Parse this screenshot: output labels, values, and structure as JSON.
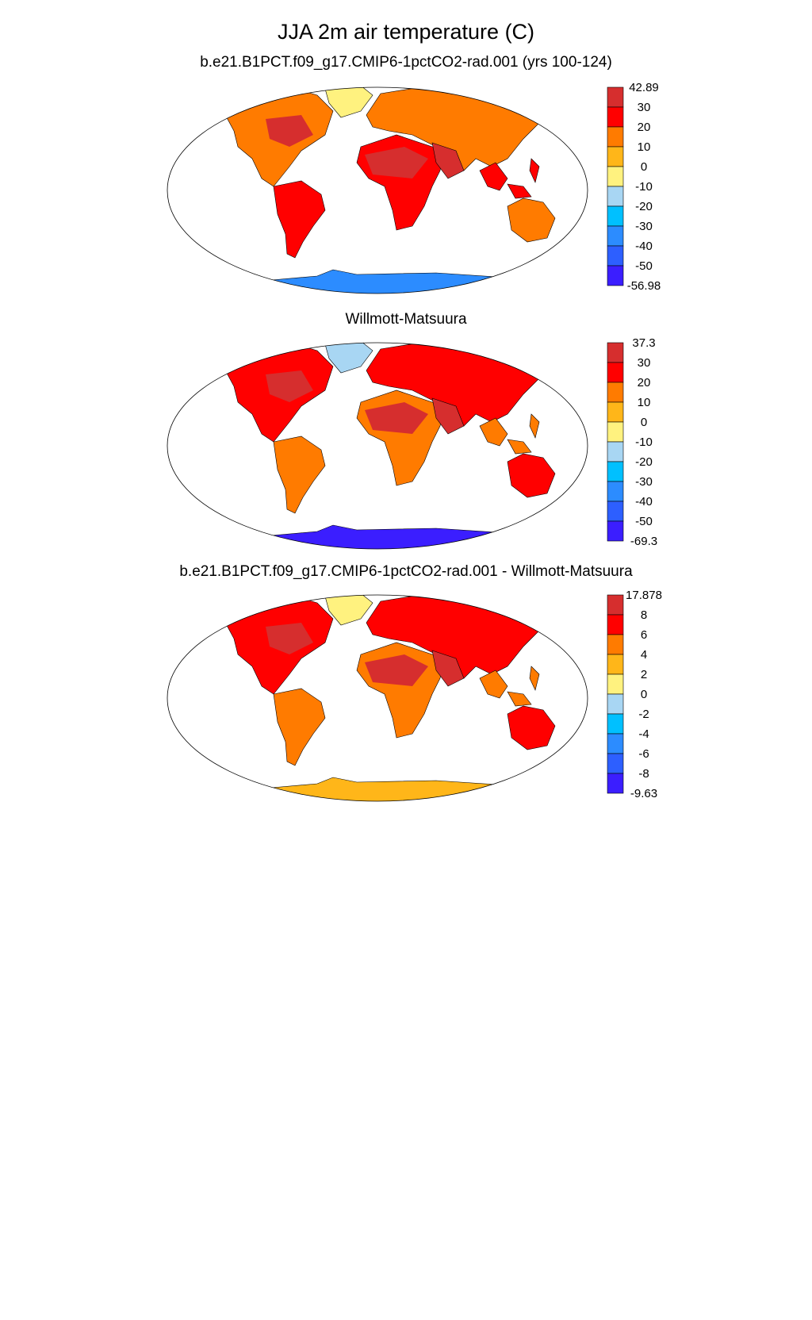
{
  "title": "JJA 2m air temperature (C)",
  "panels": [
    {
      "id": "model",
      "title": "b.e21.B1PCT.f09_g17.CMIP6-1pctCO2-rad.001 (yrs 100-124)",
      "colorbar": {
        "labels": [
          "42.89",
          "30",
          "20",
          "10",
          "0",
          "-10",
          "-20",
          "-30",
          "-40",
          "-50",
          "-56.98"
        ],
        "colors": [
          "#d62e2e",
          "#ff0000",
          "#ff7b00",
          "#ffb619",
          "#fff27f",
          "#a8d6f3",
          "#00c0ff",
          "#2c8cff",
          "#2d5fff",
          "#3b1eff"
        ]
      },
      "fill": {
        "land": "#ff0000",
        "hot": "#d62e2e",
        "warm": "#ff7b00",
        "ice": "#2c8cff",
        "greenland": "#fff27f"
      }
    },
    {
      "id": "obs",
      "title": "Willmott-Matsuura",
      "colorbar": {
        "labels": [
          "37.3",
          "30",
          "20",
          "10",
          "0",
          "-10",
          "-20",
          "-30",
          "-40",
          "-50",
          "-69.3"
        ],
        "colors": [
          "#d62e2e",
          "#ff0000",
          "#ff7b00",
          "#ffb619",
          "#fff27f",
          "#a8d6f3",
          "#00c0ff",
          "#2c8cff",
          "#2d5fff",
          "#3b1eff"
        ]
      },
      "fill": {
        "land": "#ff7b00",
        "hot": "#d62e2e",
        "warm": "#ff0000",
        "ice": "#3b1eff",
        "greenland": "#a8d6f3"
      }
    },
    {
      "id": "diff",
      "title": "b.e21.B1PCT.f09_g17.CMIP6-1pctCO2-rad.001 - Willmott-Matsuura",
      "colorbar": {
        "labels": [
          "17.878",
          "8",
          "6",
          "4",
          "2",
          "0",
          "-2",
          "-4",
          "-6",
          "-8",
          "-9.63"
        ],
        "colors": [
          "#d62e2e",
          "#ff0000",
          "#ff7b00",
          "#ffb619",
          "#fff27f",
          "#a8d6f3",
          "#00c0ff",
          "#2c8cff",
          "#2d5fff",
          "#3b1eff"
        ]
      },
      "fill": {
        "land": "#ff7b00",
        "hot": "#d62e2e",
        "warm": "#ff0000",
        "ice": "#ffb619",
        "greenland": "#fff27f"
      }
    }
  ]
}
